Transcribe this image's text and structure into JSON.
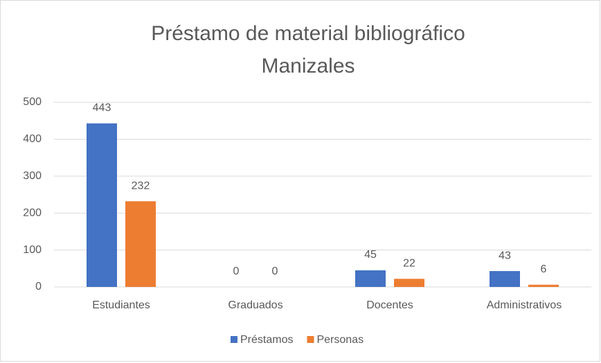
{
  "chart_data": {
    "type": "bar",
    "title": [
      "Préstamo de material bibliográfico",
      "Manizales"
    ],
    "categories": [
      "Estudiantes",
      "Graduados",
      "Docentes",
      "Administrativos"
    ],
    "series": [
      {
        "name": "Préstamos",
        "color": "#4472c4",
        "values": [
          443,
          0,
          45,
          43
        ]
      },
      {
        "name": "Personas",
        "color": "#ed7d31",
        "values": [
          232,
          0,
          22,
          6
        ]
      }
    ],
    "ylim": [
      0,
      500
    ],
    "yticks": [
      0,
      100,
      200,
      300,
      400,
      500
    ],
    "grid": true,
    "legend": "bottom"
  }
}
